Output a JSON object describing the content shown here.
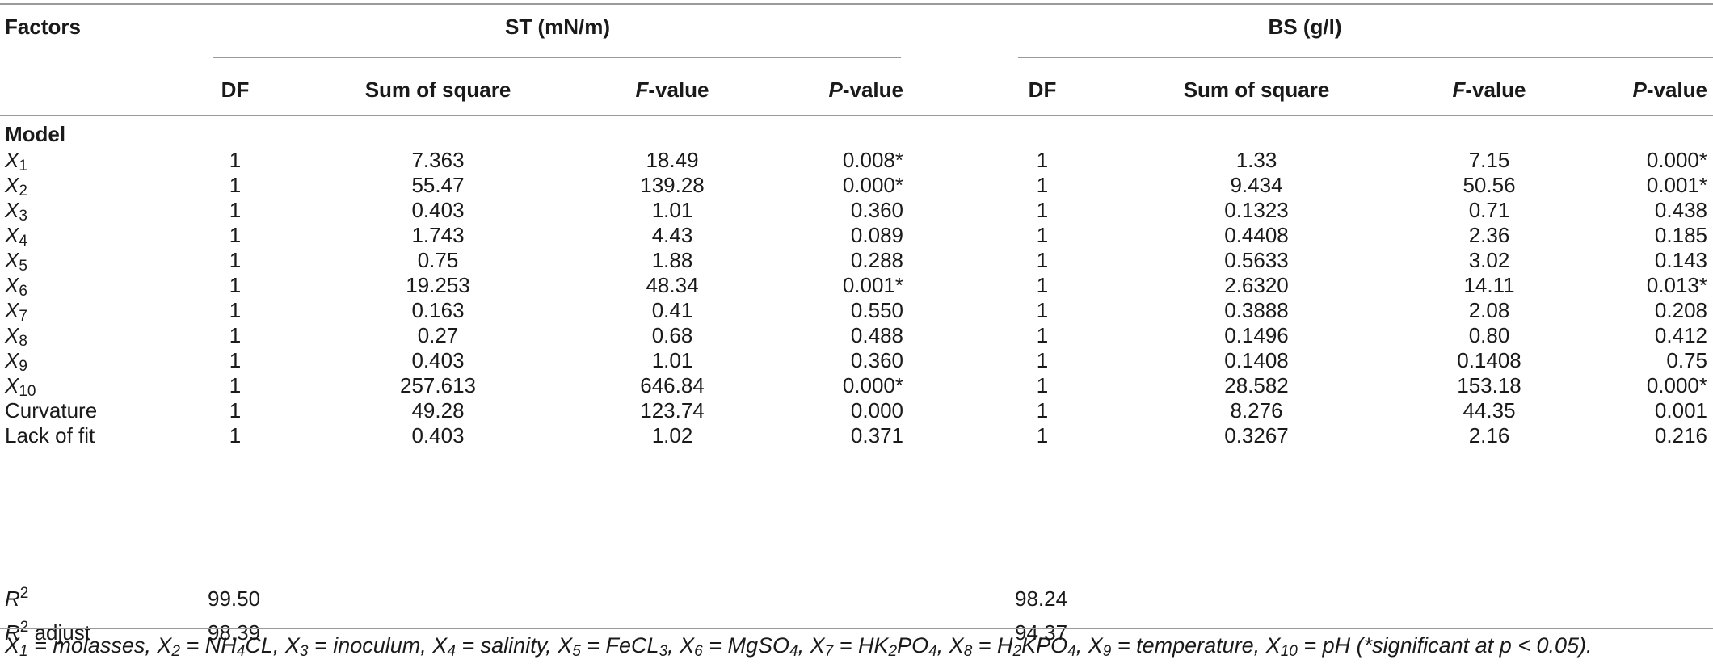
{
  "headers": {
    "factors": "Factors",
    "group_st": "ST (mN/m)",
    "group_bs": "BS (g/l)",
    "df": "DF",
    "sum_of_square": "Sum of square",
    "f_italic": "F",
    "f_rest": "-value",
    "p_italic": "P",
    "p_rest": "-value"
  },
  "section_label": "Model",
  "rows": [
    {
      "label": "X",
      "sub": "1",
      "st": [
        "1",
        "7.363",
        "18.49",
        "0.008*"
      ],
      "bs": [
        "1",
        "1.33",
        "7.15",
        "0.000*"
      ]
    },
    {
      "label": "X",
      "sub": "2",
      "st": [
        "1",
        "55.47",
        "139.28",
        "0.000*"
      ],
      "bs": [
        "1",
        "9.434",
        "50.56",
        "0.001*"
      ]
    },
    {
      "label": "X",
      "sub": "3",
      "st": [
        "1",
        "0.403",
        "1.01",
        "0.360"
      ],
      "bs": [
        "1",
        "0.1323",
        "0.71",
        "0.438"
      ]
    },
    {
      "label": "X",
      "sub": "4",
      "st": [
        "1",
        "1.743",
        "4.43",
        "0.089"
      ],
      "bs": [
        "1",
        "0.4408",
        "2.36",
        "0.185"
      ]
    },
    {
      "label": "X",
      "sub": "5",
      "st": [
        "1",
        "0.75",
        "1.88",
        "0.288"
      ],
      "bs": [
        "1",
        "0.5633",
        "3.02",
        "0.143"
      ]
    },
    {
      "label": "X",
      "sub": "6",
      "st": [
        "1",
        "19.253",
        "48.34",
        "0.001*"
      ],
      "bs": [
        "1",
        "2.6320",
        "14.11",
        "0.013*"
      ]
    },
    {
      "label": "X",
      "sub": "7",
      "st": [
        "1",
        "0.163",
        "0.41",
        "0.550"
      ],
      "bs": [
        "1",
        "0.3888",
        "2.08",
        "0.208"
      ]
    },
    {
      "label": "X",
      "sub": "8",
      "st": [
        "1",
        "0.27",
        "0.68",
        "0.488"
      ],
      "bs": [
        "1",
        "0.1496",
        "0.80",
        "0.412"
      ]
    },
    {
      "label": "X",
      "sub": "9",
      "st": [
        "1",
        "0.403",
        "1.01",
        "0.360"
      ],
      "bs": [
        "1",
        "0.1408",
        "0.1408",
        "0.75"
      ]
    },
    {
      "label": "X",
      "sub": "10",
      "st": [
        "1",
        "257.613",
        "646.84",
        "0.000*"
      ],
      "bs": [
        "1",
        "28.582",
        "153.18",
        "0.000*"
      ]
    },
    {
      "label": "Curvature",
      "sub": "",
      "st": [
        "1",
        "49.28",
        "123.74",
        "0.000"
      ],
      "bs": [
        "1",
        "8.276",
        "44.35",
        "0.001"
      ]
    },
    {
      "label": "Lack of fit",
      "sub": "",
      "st": [
        "1",
        "0.403",
        "1.02",
        "0.371"
      ],
      "bs": [
        "1",
        "0.3267",
        "2.16",
        "0.216"
      ]
    }
  ],
  "r2": {
    "label": "R",
    "sup": "2",
    "st": "99.50",
    "bs": "98.24"
  },
  "r2adj": {
    "label": "R",
    "sup": "2",
    "suffix": " adjust",
    "st": "98.39",
    "bs": "94.37"
  },
  "footnote": [
    {
      "t": "X"
    },
    {
      "sub": "1"
    },
    {
      "t": " = molasses, X"
    },
    {
      "sub": "2"
    },
    {
      "t": " = NH"
    },
    {
      "sub": "4"
    },
    {
      "t": "CL, X"
    },
    {
      "sub": "3"
    },
    {
      "t": " = inoculum, X"
    },
    {
      "sub": "4"
    },
    {
      "t": " = salinity, X"
    },
    {
      "sub": "5"
    },
    {
      "t": " = FeCL"
    },
    {
      "sub": "3"
    },
    {
      "t": ", X"
    },
    {
      "sub": "6"
    },
    {
      "t": " = MgSO"
    },
    {
      "sub": "4"
    },
    {
      "t": ", X"
    },
    {
      "sub": "7"
    },
    {
      "t": " = HK"
    },
    {
      "sub": "2"
    },
    {
      "t": "PO"
    },
    {
      "sub": "4"
    },
    {
      "t": ", X"
    },
    {
      "sub": "8"
    },
    {
      "t": " = H"
    },
    {
      "sub": "2"
    },
    {
      "t": "KPO"
    },
    {
      "sub": "4"
    },
    {
      "t": ", X"
    },
    {
      "sub": "9"
    },
    {
      "t": " = temperature, X"
    },
    {
      "sub": "10"
    },
    {
      "t": " = pH (*significant at p < 0.05)."
    }
  ]
}
